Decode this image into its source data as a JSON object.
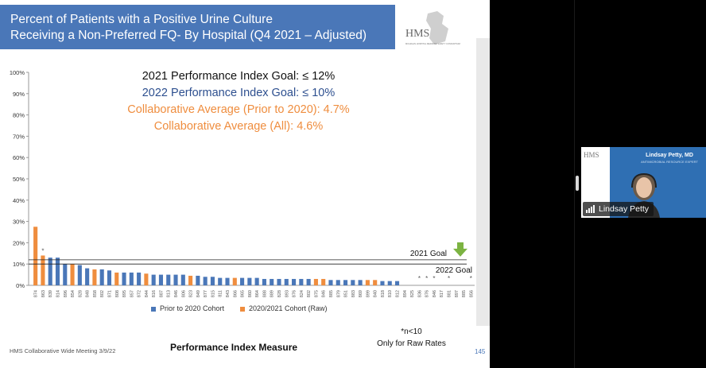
{
  "slide": {
    "title_line1": "Percent of Patients with a Positive Urine Culture",
    "title_line2": "Receiving a Non-Preferred FQ- By Hospital (Q4 2021 – Adjusted)",
    "logo_text": "HMS",
    "logo_subtext": "MICHIGAN HOSPITAL MEDICINE SAFETY CONSORTIUM",
    "goal_2021": "2021 Performance Index Goal: ≤ 12%",
    "goal_2022": "2022 Performance Index Goal: ≤ 10%",
    "collab_prior": "Collaborative Average (Prior to 2020): 4.7%",
    "collab_all": "Collaborative Average (All): 4.6%",
    "legend_prior": "Prior to 2020 Cohort",
    "legend_raw": "2020/2021 Cohort (Raw)",
    "footer_left": "HMS Collaborative Wide Meeting 3/9/22",
    "x_axis_title": "Performance Index Measure",
    "note_line1": "*n<10",
    "note_line2": "Only for Raw Rates",
    "page_number": "145",
    "goal_2021_label": "2021 Goal",
    "goal_2022_label": "2022 Goal"
  },
  "video": {
    "presenter_title": "Lindsay Petty, MD",
    "presenter_subtitle": "ANTIMICROBIAL RESOURCE EXPERT",
    "participant_name": "Lindsay Petty",
    "logo_text": "HMS"
  },
  "colors": {
    "prior": "#4a77b8",
    "raw": "#ef8d3e",
    "goal_arrow": "#7cb342"
  },
  "chart_data": {
    "type": "bar",
    "ylim": [
      0,
      100
    ],
    "yticks": [
      "0%",
      "10%",
      "20%",
      "30%",
      "40%",
      "50%",
      "60%",
      "70%",
      "80%",
      "90%",
      "100%"
    ],
    "goal_lines": [
      {
        "name": "2021 Goal",
        "value": 12
      },
      {
        "name": "2022 Goal",
        "value": 10
      }
    ],
    "categories": [
      "874",
      "863",
      "839",
      "814",
      "896",
      "854",
      "828",
      "848",
      "858",
      "802",
      "871",
      "808",
      "895",
      "857",
      "872",
      "844",
      "816",
      "887",
      "813",
      "846",
      "806",
      "823",
      "849",
      "877",
      "815",
      "811",
      "843",
      "866",
      "865",
      "860",
      "864",
      "888",
      "889",
      "828",
      "893",
      "876",
      "824",
      "802",
      "875",
      "846",
      "885",
      "879",
      "851",
      "883",
      "869",
      "899",
      "840",
      "818",
      "810",
      "812",
      "894",
      "825",
      "836",
      "876",
      "846",
      "817",
      "881",
      "897",
      "885",
      "856"
    ],
    "cohort": [
      "raw",
      "raw",
      "prior",
      "prior",
      "prior",
      "raw",
      "prior",
      "prior",
      "raw",
      "prior",
      "prior",
      "raw",
      "prior",
      "prior",
      "prior",
      "raw",
      "prior",
      "prior",
      "prior",
      "prior",
      "prior",
      "raw",
      "prior",
      "prior",
      "prior",
      "prior",
      "prior",
      "raw",
      "prior",
      "prior",
      "prior",
      "prior",
      "prior",
      "prior",
      "prior",
      "prior",
      "prior",
      "prior",
      "raw",
      "raw",
      "prior",
      "prior",
      "prior",
      "prior",
      "prior",
      "raw",
      "raw",
      "prior",
      "prior",
      "prior",
      "raw",
      "raw",
      "raw",
      "raw",
      "raw",
      "raw",
      "raw",
      "raw",
      "raw",
      "raw"
    ],
    "values": [
      27.5,
      14,
      13,
      13,
      10,
      10,
      9.5,
      8,
      7.5,
      7.5,
      7,
      6,
      6,
      6,
      6,
      5.5,
      5,
      5,
      5,
      5,
      5,
      4.5,
      4.5,
      4,
      4,
      3.5,
      3.5,
      3.5,
      3.5,
      3.5,
      3.5,
      3,
      3,
      3,
      3,
      3,
      3,
      3,
      3,
      3,
      2.5,
      2.5,
      2.5,
      2.5,
      2.5,
      2.5,
      2.5,
      2,
      2,
      2,
      0,
      0,
      0,
      0,
      0,
      0,
      0,
      0,
      0,
      0
    ],
    "asterisk": [
      false,
      true,
      false,
      false,
      false,
      false,
      false,
      false,
      false,
      false,
      false,
      false,
      false,
      false,
      false,
      false,
      false,
      false,
      false,
      false,
      false,
      false,
      false,
      false,
      false,
      false,
      false,
      false,
      false,
      false,
      false,
      false,
      false,
      false,
      false,
      false,
      false,
      false,
      false,
      false,
      false,
      false,
      false,
      false,
      false,
      false,
      false,
      false,
      false,
      false,
      false,
      false,
      true,
      true,
      true,
      false,
      true,
      false,
      false,
      true
    ]
  }
}
